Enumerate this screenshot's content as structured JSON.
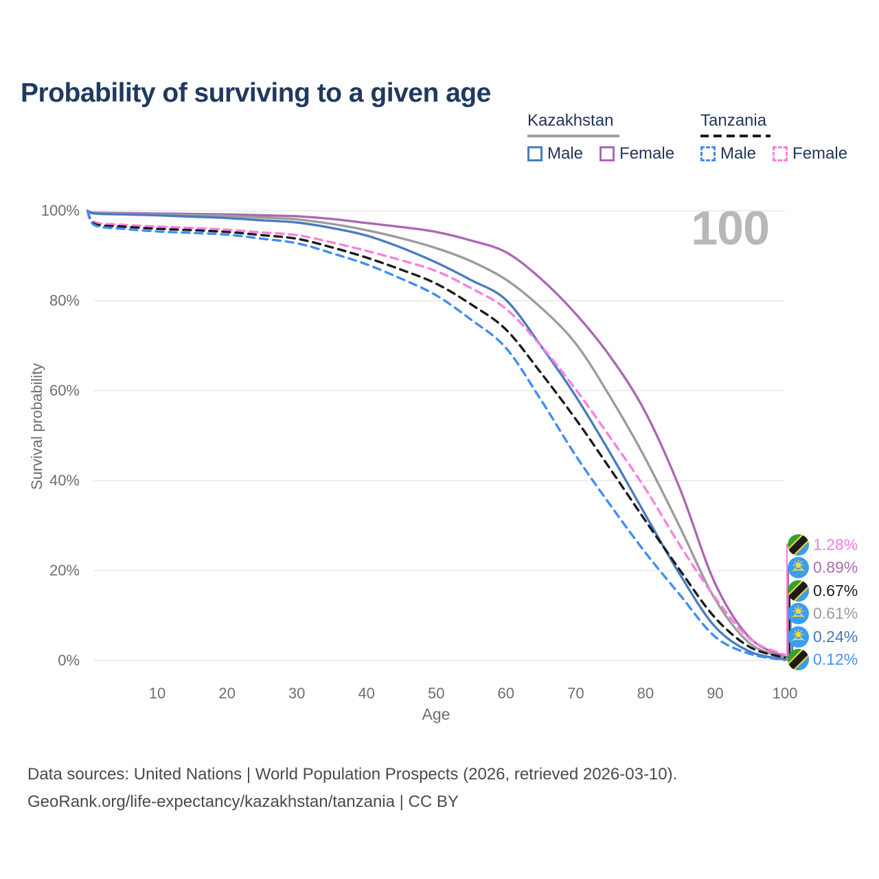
{
  "title": "Probability of surviving to a given age",
  "watermark": "100",
  "legend": {
    "groups": [
      {
        "country": "Kazakhstan",
        "style": "solid",
        "underline_color": "#9e9e9e",
        "items": [
          {
            "label": "Male",
            "color": "#4a7cc0"
          },
          {
            "label": "Female",
            "color": "#ab68b3"
          }
        ]
      },
      {
        "country": "Tanzania",
        "style": "dashed",
        "underline_color": "#1a1a1a",
        "items": [
          {
            "label": "Male",
            "color": "#3f8df5"
          },
          {
            "label": "Female",
            "color": "#fc7fe1"
          }
        ]
      }
    ]
  },
  "chart_data": {
    "type": "line",
    "title": "Probability of surviving to a given age",
    "xlabel": "Age",
    "ylabel": "Survival probability",
    "xlim": [
      0,
      100
    ],
    "ylim": [
      0,
      100
    ],
    "grid": "horizontal",
    "x_ticks": [
      10,
      20,
      30,
      40,
      50,
      60,
      70,
      80,
      90,
      100
    ],
    "y_ticks": [
      0,
      20,
      40,
      60,
      80,
      100
    ],
    "y_tick_labels": [
      "0%",
      "20%",
      "40%",
      "60%",
      "80%",
      "100%"
    ],
    "x": [
      0,
      1,
      5,
      10,
      15,
      20,
      25,
      30,
      35,
      40,
      45,
      50,
      55,
      60,
      65,
      70,
      75,
      80,
      85,
      90,
      95,
      100
    ],
    "series": [
      {
        "name": "Kazakhstan Female",
        "country": "Kazakhstan",
        "sex": "Female",
        "color": "#ab68b3",
        "dash": false,
        "values": [
          100,
          99.6,
          99.5,
          99.4,
          99.3,
          99.2,
          99.0,
          98.8,
          98.2,
          97.3,
          96.4,
          95.3,
          93.4,
          90.8,
          84.9,
          77.1,
          67.5,
          55.2,
          38.0,
          17.1,
          5.0,
          0.89
        ]
      },
      {
        "name": "Kazakhstan Both sexes",
        "country": "Kazakhstan",
        "sex": "Both",
        "color": "#9c9c9c",
        "dash": false,
        "values": [
          100,
          99.5,
          99.35,
          99.2,
          99.05,
          98.9,
          98.5,
          98.1,
          97.1,
          95.7,
          93.9,
          91.7,
          88.8,
          84.7,
          78.5,
          70.5,
          58.5,
          44.9,
          29.5,
          13.6,
          3.8,
          0.61
        ]
      },
      {
        "name": "Kazakhstan Male",
        "country": "Kazakhstan",
        "sex": "Male",
        "color": "#4a7cc0",
        "dash": false,
        "values": [
          100,
          99.4,
          99.2,
          99.0,
          98.7,
          98.4,
          97.9,
          97.4,
          96.2,
          94.5,
          91.8,
          88.5,
          84.6,
          80.2,
          70.0,
          58.8,
          46.0,
          32.4,
          19.0,
          7.5,
          2.0,
          0.24
        ]
      },
      {
        "name": "Tanzania Female",
        "country": "Tanzania",
        "sex": "Female",
        "color": "#fc7fe1",
        "dash": true,
        "values": [
          100,
          97.5,
          96.9,
          96.5,
          96.2,
          95.8,
          95.2,
          94.6,
          93.0,
          91.1,
          89.0,
          86.6,
          82.8,
          78.2,
          70.0,
          60.3,
          49.5,
          38.2,
          25.5,
          14.0,
          4.8,
          1.28
        ]
      },
      {
        "name": "Tanzania Both sexes",
        "country": "Tanzania",
        "sex": "Both",
        "color": "#1b1b1b",
        "dash": true,
        "values": [
          100,
          97.1,
          96.5,
          96.0,
          95.7,
          95.3,
          94.6,
          93.8,
          91.9,
          89.6,
          86.9,
          83.8,
          79.2,
          73.6,
          64.0,
          53.7,
          42.5,
          31.1,
          20.0,
          9.5,
          3.0,
          0.67
        ]
      },
      {
        "name": "Tanzania Male",
        "country": "Tanzania",
        "sex": "Male",
        "color": "#3f8df5",
        "dash": true,
        "values": [
          100,
          96.8,
          96.0,
          95.4,
          95.1,
          94.7,
          93.8,
          92.8,
          90.6,
          88.1,
          84.9,
          81.2,
          75.8,
          69.5,
          58.0,
          45.6,
          34.5,
          24.0,
          14.5,
          5.3,
          1.5,
          0.12
        ]
      }
    ],
    "legend_position": "top-right"
  },
  "endpoint_labels": [
    {
      "country": "Tanzania",
      "flag": "tanzania-flag-icon",
      "value": "1.28%",
      "color": "#fb7ce0",
      "series": "Tanzania Female"
    },
    {
      "country": "Kazakhstan",
      "flag": "kazakhstan-flag-icon",
      "value": "0.89%",
      "color": "#a86db1",
      "series": "Kazakhstan Female"
    },
    {
      "country": "Tanzania",
      "flag": "tanzania-flag-icon",
      "value": "0.67%",
      "color": "#1d1d1d",
      "series": "Tanzania Both sexes"
    },
    {
      "country": "Kazakhstan",
      "flag": "kazakhstan-flag-icon",
      "value": "0.61%",
      "color": "#9b9b9b",
      "series": "Kazakhstan Both sexes"
    },
    {
      "country": "Kazakhstan",
      "flag": "kazakhstan-flag-icon",
      "value": "0.24%",
      "color": "#4677b8",
      "series": "Kazakhstan Male"
    },
    {
      "country": "Tanzania",
      "flag": "tanzania-flag-icon",
      "value": "0.12%",
      "color": "#4a90f5",
      "series": "Tanzania Male"
    }
  ],
  "footer": {
    "line1": "Data sources: United Nations | World Population Prospects (2026, retrieved 2026-03-10).",
    "line2": "GeoRank.org/life-expectancy/kazakhstan/tanzania | CC BY"
  }
}
